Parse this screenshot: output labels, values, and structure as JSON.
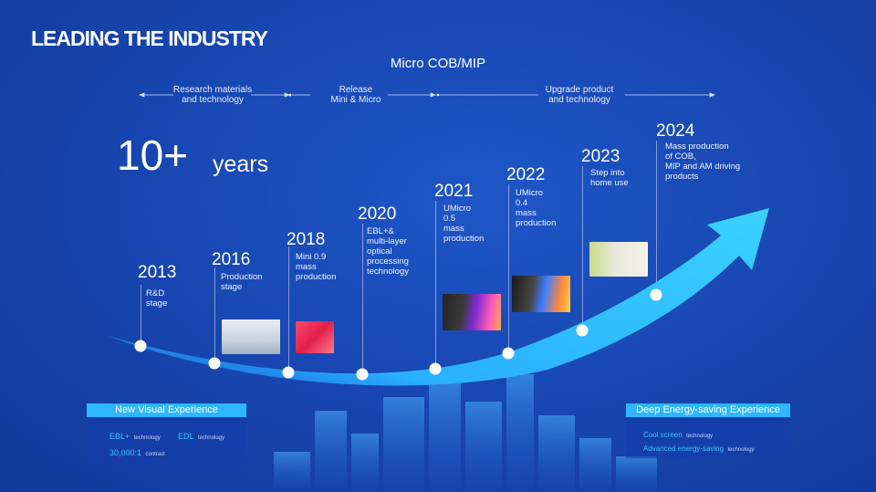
{
  "title": "LEADING THE INDUSTRY",
  "subtitle": "Micro COB/MIP",
  "phases": [
    {
      "label": "Research materials\nand technology"
    },
    {
      "label": "Release\nMini & Micro"
    },
    {
      "label": "Upgrade product\nand technology"
    }
  ],
  "headline": {
    "number": "10+",
    "unit": "years"
  },
  "milestones": [
    {
      "year": "2013",
      "desc": "R&D\nstage"
    },
    {
      "year": "2016",
      "desc": "Production\nstage"
    },
    {
      "year": "2018",
      "desc": "Mini 0.9\nmass\nproduction"
    },
    {
      "year": "2020",
      "desc": "EBL+&\nmulti-layer\noptical\nprocessing\ntechnology"
    },
    {
      "year": "2021",
      "desc": "UMicro\n0.5\nmass\nproduction"
    },
    {
      "year": "2022",
      "desc": "UMicro\n0.4\nmass\nproduction"
    },
    {
      "year": "2023",
      "desc": "Step into\nhome use"
    },
    {
      "year": "2024",
      "desc": "Mass production\n of COB,\nMIP and AM driving\nproducts"
    }
  ],
  "left_panel": {
    "heading": "New Visual Experience",
    "items": [
      {
        "main": "EBL+",
        "small": "technology"
      },
      {
        "main": "EDL",
        "small": "technology"
      },
      {
        "main": "30,000:1",
        "small": "contrast"
      }
    ]
  },
  "right_panel": {
    "heading": "Deep Energy-saving Experience",
    "items": [
      {
        "main": "Cool screen",
        "small": "technology"
      },
      {
        "main": "Advanced energy-saving",
        "small": "technology"
      }
    ]
  },
  "colors": {
    "background": "#1848b3",
    "arrow": "#2eb6ff",
    "panel_head": "#2eb6ff"
  }
}
